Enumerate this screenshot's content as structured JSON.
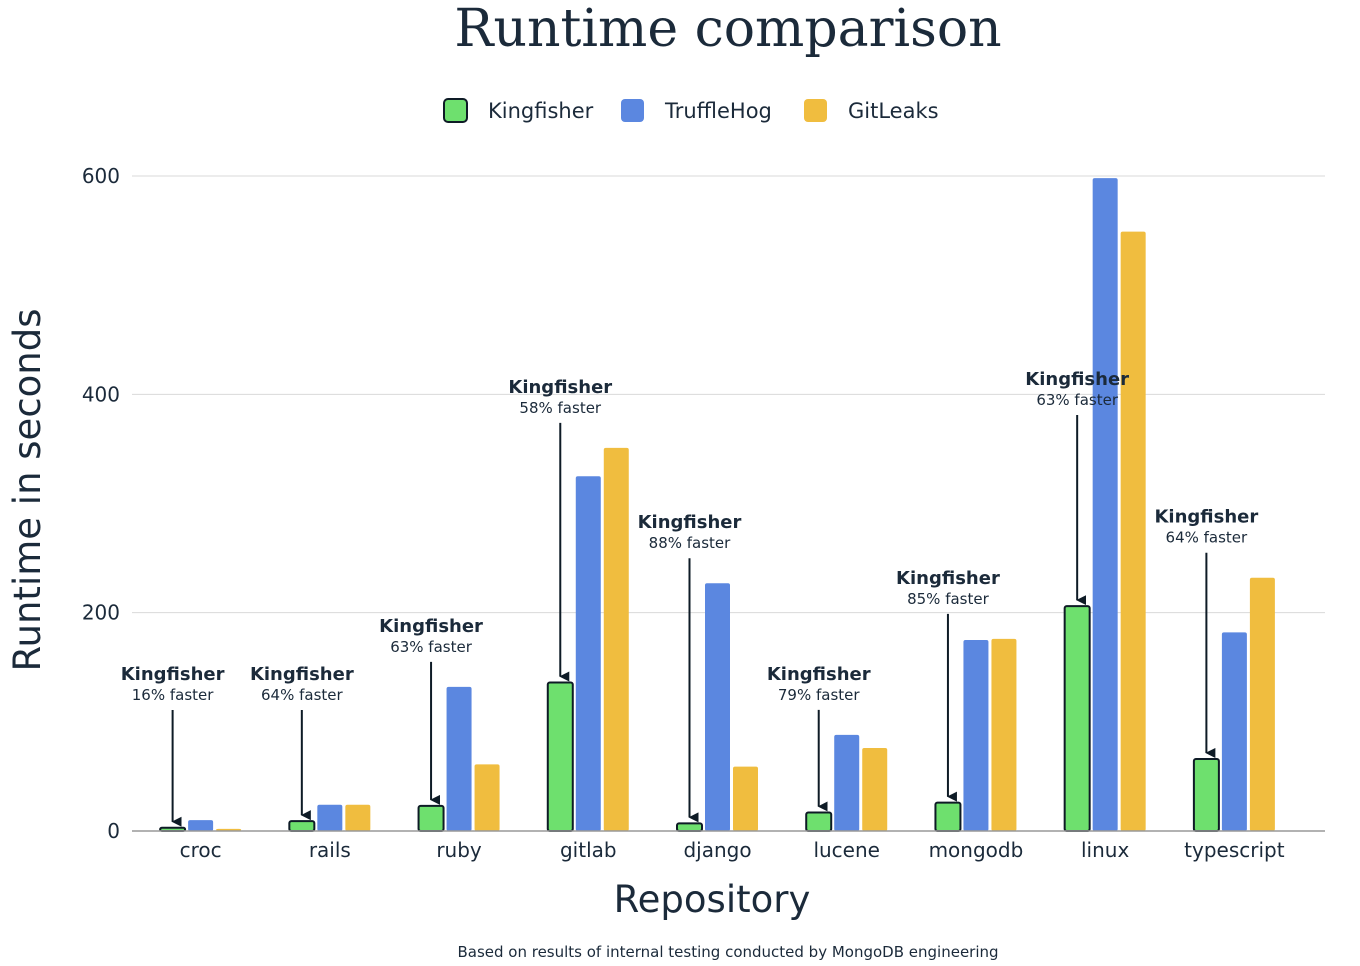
{
  "chart_data": {
    "type": "bar",
    "title": "Runtime comparison",
    "xlabel": "Repository",
    "ylabel": "Runtime in seconds",
    "ylim": [
      0,
      600
    ],
    "yticks": [
      0,
      200,
      400,
      600
    ],
    "grid": true,
    "legend_position": "top-center",
    "categories": [
      "croc",
      "rails",
      "ruby",
      "gitlab",
      "django",
      "lucene",
      "mongodb",
      "linux",
      "typescript"
    ],
    "series": [
      {
        "name": "Kingfisher",
        "color": "#6ee06e",
        "values": [
          3,
          9,
          23,
          136,
          7,
          17,
          26,
          206,
          66
        ]
      },
      {
        "name": "TruffleHog",
        "color": "#5b87e0",
        "values": [
          10,
          24,
          132,
          325,
          227,
          88,
          175,
          598,
          182
        ]
      },
      {
        "name": "GitLeaks",
        "color": "#f0bd3f",
        "values": [
          2,
          24,
          61,
          351,
          59,
          76,
          176,
          549,
          232
        ]
      }
    ],
    "annotations": [
      {
        "category": "croc",
        "name": "Kingfisher",
        "text": "16% faster"
      },
      {
        "category": "rails",
        "name": "Kingfisher",
        "text": "64% faster"
      },
      {
        "category": "ruby",
        "name": "Kingfisher",
        "text": "63% faster"
      },
      {
        "category": "gitlab",
        "name": "Kingfisher",
        "text": "58% faster"
      },
      {
        "category": "django",
        "name": "Kingfisher",
        "text": "88% faster"
      },
      {
        "category": "lucene",
        "name": "Kingfisher",
        "text": "79% faster"
      },
      {
        "category": "mongodb",
        "name": "Kingfisher",
        "text": "85% faster"
      },
      {
        "category": "linux",
        "name": "Kingfisher",
        "text": "63% faster"
      },
      {
        "category": "typescript",
        "name": "Kingfisher",
        "text": "64% faster"
      }
    ],
    "footnote": "Based on results of internal testing conducted by MongoDB engineering"
  }
}
